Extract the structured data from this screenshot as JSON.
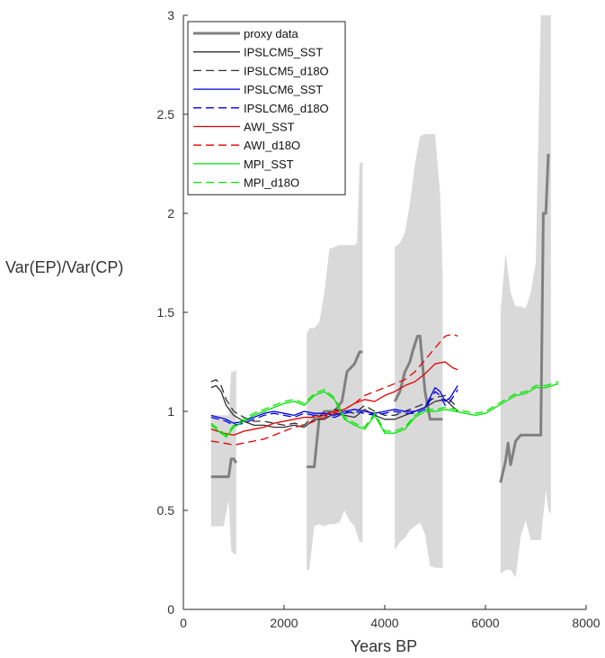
{
  "chart_data": {
    "type": "line",
    "xlabel": "Years BP",
    "ylabel": "Var(EP)/Var(CP)",
    "xlim": [
      0,
      8000
    ],
    "ylim": [
      0,
      3
    ],
    "xticks": [
      0,
      2000,
      4000,
      6000,
      8000
    ],
    "yticks": [
      0,
      0.5,
      1,
      1.5,
      2,
      2.5,
      3
    ],
    "xtick_labels": [
      "0",
      "2000",
      "4000",
      "6000",
      "8000"
    ],
    "ytick_labels": [
      "0",
      "0.5",
      "1",
      "1.5",
      "2",
      "2.5",
      "3"
    ],
    "grid": false,
    "legend_position": "top-left",
    "proxy_bands": [
      {
        "x": [
          550,
          600,
          700,
          800,
          900,
          950,
          1000,
          1050,
          1050,
          1000,
          950,
          900,
          800,
          700,
          600,
          550
        ],
        "y": [
          0.42,
          0.42,
          0.42,
          0.42,
          0.55,
          0.3,
          0.28,
          0.28,
          1.21,
          1.2,
          1.2,
          0.98,
          0.98,
          0.98,
          0.98,
          0.98
        ]
      },
      {
        "x": [
          2450,
          2500,
          2600,
          2700,
          2800,
          2900,
          3000,
          3100,
          3200,
          3300,
          3400,
          3500,
          3560,
          3560,
          3500,
          3450,
          3400,
          3300,
          3200,
          3100,
          3000,
          2900,
          2800,
          2700,
          2600,
          2500,
          2450
        ],
        "y": [
          0.2,
          0.2,
          0.42,
          0.43,
          0.42,
          0.43,
          0.43,
          0.44,
          0.5,
          0.45,
          0.42,
          0.34,
          0.34,
          2.26,
          2.25,
          1.85,
          1.84,
          1.84,
          1.84,
          1.84,
          1.83,
          1.82,
          1.6,
          1.45,
          1.42,
          1.42,
          1.39
        ]
      },
      {
        "x": [
          4200,
          4300,
          4400,
          4500,
          4600,
          4700,
          4800,
          4900,
          5000,
          5100,
          5150,
          5150,
          5100,
          5000,
          4900,
          4800,
          4700,
          4600,
          4500,
          4400,
          4300,
          4200
        ],
        "y": [
          0.3,
          0.34,
          0.36,
          0.4,
          0.42,
          0.44,
          0.38,
          0.22,
          0.21,
          0.21,
          0.21,
          1.7,
          2.1,
          2.4,
          2.4,
          2.4,
          2.39,
          2.25,
          2.05,
          1.9,
          1.85,
          1.83
        ]
      },
      {
        "x": [
          6300,
          6400,
          6500,
          6600,
          6700,
          6800,
          6900,
          7000,
          7100,
          7200,
          7250,
          7300,
          7300,
          7250,
          7200,
          7100,
          7000,
          6900,
          6800,
          6700,
          6600,
          6500,
          6400,
          6300
        ],
        "y": [
          0.18,
          0.2,
          0.2,
          0.16,
          0.37,
          0.45,
          0.35,
          0.35,
          0.35,
          0.6,
          0.5,
          0.48,
          3.0,
          3.0,
          3.0,
          3.0,
          1.75,
          1.6,
          1.52,
          1.53,
          1.53,
          1.6,
          1.8,
          1.5
        ]
      }
    ],
    "series": [
      {
        "name": "proxy data",
        "color": "#808080",
        "style": "solid",
        "weight": "thick",
        "segments": [
          {
            "x": [
              550,
              900,
              950,
              1000,
              1050
            ],
            "y": [
              0.67,
              0.67,
              0.76,
              0.76,
              0.74
            ]
          },
          {
            "x": [
              2450,
              2600,
              2700,
              2800,
              3000,
              3150,
              3250,
              3400,
              3500,
              3560
            ],
            "y": [
              0.72,
              0.72,
              0.97,
              1.0,
              1.0,
              1.05,
              1.2,
              1.24,
              1.3,
              1.3
            ]
          },
          {
            "x": [
              4200,
              4300,
              4400,
              4500,
              4550,
              4650,
              4700,
              4800,
              4900,
              5000,
              5150
            ],
            "y": [
              1.05,
              1.1,
              1.2,
              1.25,
              1.3,
              1.38,
              1.38,
              1.1,
              0.96,
              0.96,
              0.96
            ]
          },
          {
            "x": [
              6300,
              6400,
              6450,
              6500,
              6600,
              6700,
              7000,
              7100,
              7150,
              7200,
              7250
            ],
            "y": [
              0.64,
              0.75,
              0.84,
              0.73,
              0.85,
              0.88,
              0.88,
              0.88,
              2.0,
              2.0,
              2.3
            ]
          }
        ]
      },
      {
        "name": "IPSLCM5_SST",
        "color": "#303030",
        "style": "solid",
        "x": [
          550,
          650,
          750,
          850,
          1000,
          1200,
          1400,
          1600,
          1800,
          2000,
          2200,
          2400,
          2600,
          2800,
          3000,
          3200,
          3400,
          3600,
          3800,
          4000,
          4200,
          4400,
          4600,
          4800,
          5000,
          5200,
          5450
        ],
        "y": [
          1.12,
          1.13,
          1.1,
          1.03,
          0.98,
          0.95,
          0.93,
          0.93,
          0.92,
          0.92,
          0.93,
          0.92,
          0.96,
          0.96,
          0.99,
          0.98,
          0.97,
          1.01,
          0.98,
          0.96,
          0.96,
          0.98,
          1.0,
          1.02,
          1.05,
          1.06,
          1.0
        ]
      },
      {
        "name": "IPSLCM5_d18O",
        "color": "#303030",
        "style": "dashed",
        "x": [
          550,
          650,
          750,
          850,
          1000,
          1200,
          1400,
          1600,
          1800,
          2000,
          2200,
          2400,
          2600,
          2800,
          3000,
          3200,
          3400,
          3600,
          3800,
          4000,
          4200,
          4400,
          4600,
          4800,
          5000,
          5200,
          5450
        ],
        "y": [
          1.15,
          1.16,
          1.13,
          1.06,
          1.0,
          0.97,
          0.95,
          0.95,
          0.94,
          0.93,
          0.94,
          0.93,
          0.98,
          0.98,
          1.01,
          1.0,
          0.99,
          1.03,
          1.0,
          0.98,
          0.98,
          1.0,
          1.02,
          1.04,
          1.07,
          1.08,
          1.02
        ]
      },
      {
        "name": "IPSLCM6_SST",
        "color": "#0000e6",
        "style": "solid",
        "x": [
          550,
          700,
          850,
          1000,
          1200,
          1400,
          1600,
          1800,
          2000,
          2200,
          2400,
          2600,
          2800,
          3000,
          3200,
          3400,
          3600,
          3800,
          4000,
          4200,
          4400,
          4600,
          4800,
          5000,
          5100,
          5200,
          5300,
          5450
        ],
        "y": [
          0.98,
          0.97,
          0.96,
          0.94,
          0.95,
          0.97,
          0.99,
          1.0,
          0.99,
          0.98,
          1.0,
          0.99,
          0.99,
          0.98,
          1.0,
          1.01,
          1.0,
          0.99,
          1.0,
          1.01,
          1.0,
          1.0,
          1.02,
          1.12,
          1.1,
          1.05,
          1.07,
          1.13
        ]
      },
      {
        "name": "IPSLCM6_d18O",
        "color": "#0000e6",
        "style": "dashed",
        "x": [
          550,
          700,
          850,
          1000,
          1200,
          1400,
          1600,
          1800,
          2000,
          2200,
          2400,
          2600,
          2800,
          3000,
          3200,
          3400,
          3600,
          3800,
          4000,
          4200,
          4400,
          4600,
          4800,
          5000,
          5100,
          5200,
          5300,
          5450
        ],
        "y": [
          0.97,
          0.96,
          0.95,
          0.93,
          0.94,
          0.96,
          0.98,
          0.99,
          0.98,
          0.97,
          0.99,
          0.98,
          0.98,
          0.97,
          0.99,
          1.0,
          0.99,
          0.98,
          0.99,
          1.0,
          0.99,
          0.99,
          1.01,
          1.1,
          1.08,
          1.03,
          1.05,
          1.11
        ]
      },
      {
        "name": "AWI_SST",
        "color": "#e60000",
        "style": "solid",
        "x": [
          550,
          800,
          1000,
          1200,
          1400,
          1600,
          1800,
          2000,
          2200,
          2400,
          2600,
          2800,
          3000,
          3200,
          3400,
          3600,
          3800,
          4000,
          4200,
          4400,
          4600,
          4800,
          5000,
          5200,
          5350,
          5450
        ],
        "y": [
          0.91,
          0.89,
          0.88,
          0.9,
          0.91,
          0.92,
          0.94,
          0.95,
          0.96,
          0.97,
          0.97,
          0.98,
          1.0,
          1.01,
          1.04,
          1.06,
          1.05,
          1.08,
          1.1,
          1.13,
          1.15,
          1.19,
          1.24,
          1.25,
          1.22,
          1.21
        ]
      },
      {
        "name": "AWI_d18O",
        "color": "#e60000",
        "style": "dashed",
        "x": [
          550,
          800,
          1000,
          1200,
          1400,
          1600,
          1800,
          2000,
          2200,
          2400,
          2600,
          2800,
          3000,
          3200,
          3400,
          3600,
          3800,
          4000,
          4200,
          4400,
          4600,
          4800,
          5000,
          5200,
          5350,
          5450
        ],
        "y": [
          0.85,
          0.84,
          0.83,
          0.84,
          0.85,
          0.86,
          0.88,
          0.9,
          0.92,
          0.93,
          0.95,
          0.97,
          0.99,
          1.01,
          1.04,
          1.08,
          1.1,
          1.12,
          1.14,
          1.16,
          1.2,
          1.26,
          1.32,
          1.38,
          1.39,
          1.38
        ]
      },
      {
        "name": "MPI_SST",
        "color": "#00e600",
        "style": "solid",
        "x": [
          550,
          700,
          850,
          1000,
          1200,
          1400,
          1600,
          1800,
          2000,
          2200,
          2400,
          2600,
          2800,
          3000,
          3200,
          3400,
          3600,
          3800,
          4000,
          4200,
          4400,
          4600,
          4800,
          5000,
          5200,
          5400,
          5600,
          5800,
          6000,
          6200,
          6400,
          6600,
          6800,
          7000,
          7200,
          7450
        ],
        "y": [
          0.93,
          0.9,
          0.87,
          0.92,
          0.95,
          0.98,
          1.0,
          1.02,
          1.04,
          1.05,
          1.03,
          1.08,
          1.1,
          1.06,
          0.96,
          0.93,
          0.91,
          0.98,
          0.89,
          0.89,
          0.91,
          0.97,
          1.0,
          1.0,
          1.01,
          1.0,
          0.99,
          0.98,
          0.99,
          1.02,
          1.05,
          1.08,
          1.09,
          1.12,
          1.12,
          1.14
        ]
      },
      {
        "name": "MPI_d18O",
        "color": "#00e600",
        "style": "dashed",
        "x": [
          550,
          700,
          850,
          1000,
          1200,
          1400,
          1600,
          1800,
          2000,
          2200,
          2400,
          2600,
          2800,
          3000,
          3200,
          3400,
          3600,
          3800,
          4000,
          4200,
          4400,
          4600,
          4800,
          5000,
          5200,
          5400,
          5600,
          5800,
          6000,
          6200,
          6400,
          6600,
          6800,
          7000,
          7200,
          7450
        ],
        "y": [
          0.94,
          0.91,
          0.88,
          0.93,
          0.96,
          0.99,
          1.01,
          1.03,
          1.05,
          1.06,
          1.04,
          1.09,
          1.11,
          1.07,
          0.97,
          0.94,
          0.92,
          0.99,
          0.9,
          0.9,
          0.92,
          0.98,
          1.01,
          1.01,
          1.02,
          1.01,
          1.0,
          0.99,
          1.0,
          1.03,
          1.06,
          1.09,
          1.1,
          1.13,
          1.13,
          1.15
        ]
      }
    ]
  }
}
